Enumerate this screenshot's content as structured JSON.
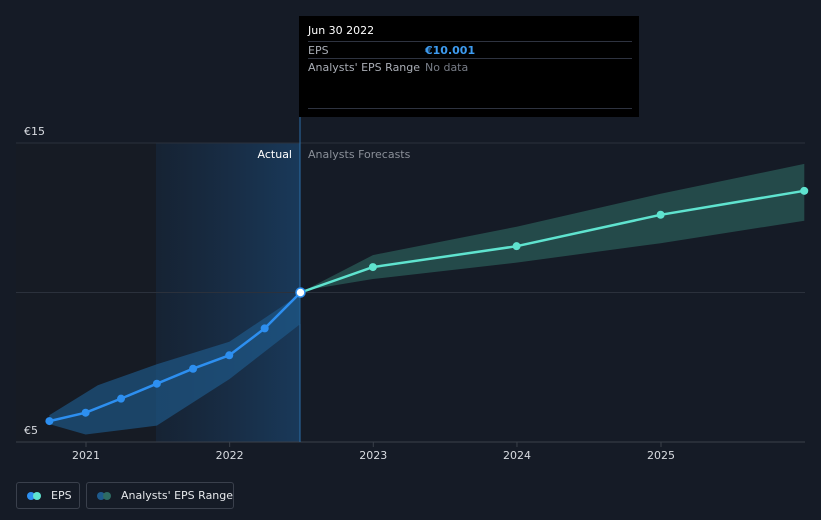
{
  "tooltip": {
    "date": "Jun 30 2022",
    "eps_label": "EPS",
    "eps_value": "€10.001",
    "range_label": "Analysts' EPS Range",
    "range_value": "No data"
  },
  "region_labels": {
    "actual": "Actual",
    "forecast": "Analysts Forecasts"
  },
  "legend": {
    "eps": "EPS",
    "range": "Analysts' EPS Range"
  },
  "colors": {
    "background": "#151b26",
    "eps_actual": "#2d8ff0",
    "eps_forecast": "#5fe3cf",
    "range_actual": "#1e5a8c",
    "range_forecast": "#2e6b63"
  },
  "chart_data": {
    "type": "line",
    "title": "",
    "xlabel": "",
    "ylabel": "",
    "y_unit": "€",
    "ylim": [
      5,
      15
    ],
    "yticks": [
      {
        "value": 15,
        "label": "€15"
      },
      {
        "value": 5,
        "label": "€5"
      }
    ],
    "xticks": [
      "2021",
      "2022",
      "2023",
      "2024",
      "2025"
    ],
    "grid": "horizontal",
    "legend_position": "bottom-left",
    "highlight_date": "2022-06-30",
    "series": [
      {
        "name": "EPS",
        "segment": "actual",
        "points": [
          {
            "x": "2020-09-30",
            "y": 5.7
          },
          {
            "x": "2020-12-31",
            "y": 5.98
          },
          {
            "x": "2021-03-31",
            "y": 6.45
          },
          {
            "x": "2021-06-30",
            "y": 6.95
          },
          {
            "x": "2021-09-30",
            "y": 7.45
          },
          {
            "x": "2021-12-31",
            "y": 7.9
          },
          {
            "x": "2022-03-31",
            "y": 8.8
          },
          {
            "x": "2022-06-30",
            "y": 10.0
          }
        ]
      },
      {
        "name": "EPS",
        "segment": "forecast",
        "points": [
          {
            "x": "2022-06-30",
            "y": 10.0
          },
          {
            "x": "2022-12-31",
            "y": 10.85
          },
          {
            "x": "2023-12-31",
            "y": 11.55
          },
          {
            "x": "2024-12-31",
            "y": 12.6
          },
          {
            "x": "2025-12-31",
            "y": 13.4
          }
        ]
      }
    ],
    "ranges": [
      {
        "name": "Analysts' EPS Range",
        "segment": "actual",
        "upper": [
          {
            "x": "2020-09-30",
            "y": 5.9
          },
          {
            "x": "2021-01-31",
            "y": 6.9
          },
          {
            "x": "2021-06-30",
            "y": 7.6
          },
          {
            "x": "2021-12-31",
            "y": 8.35
          },
          {
            "x": "2022-06-30",
            "y": 9.95
          }
        ],
        "lower": [
          {
            "x": "2022-06-30",
            "y": 8.95
          },
          {
            "x": "2021-12-31",
            "y": 7.1
          },
          {
            "x": "2021-06-30",
            "y": 5.55
          },
          {
            "x": "2020-12-31",
            "y": 5.25
          },
          {
            "x": "2020-09-30",
            "y": 5.6
          }
        ]
      },
      {
        "name": "Analysts' EPS Range",
        "segment": "forecast",
        "upper": [
          {
            "x": "2022-06-30",
            "y": 10.0
          },
          {
            "x": "2022-12-31",
            "y": 11.25
          },
          {
            "x": "2023-12-31",
            "y": 12.2
          },
          {
            "x": "2024-12-31",
            "y": 13.3
          },
          {
            "x": "2025-12-31",
            "y": 14.3
          }
        ],
        "lower": [
          {
            "x": "2025-12-31",
            "y": 12.4
          },
          {
            "x": "2024-12-31",
            "y": 11.65
          },
          {
            "x": "2023-12-31",
            "y": 11.0
          },
          {
            "x": "2022-12-31",
            "y": 10.45
          },
          {
            "x": "2022-06-30",
            "y": 10.05
          }
        ]
      }
    ]
  }
}
